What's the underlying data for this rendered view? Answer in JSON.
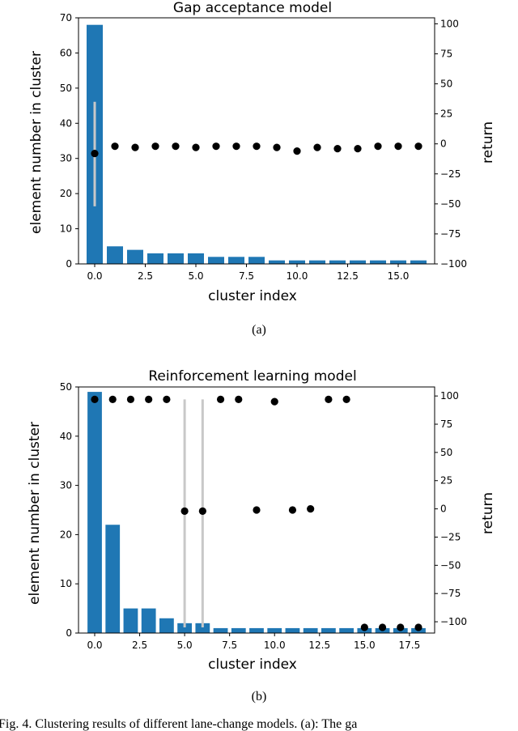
{
  "chart_data": [
    {
      "type": "bar",
      "title": "Gap acceptance model",
      "sub_caption": "(a)",
      "xlabel": "cluster index",
      "ylabel": "element number in cluster",
      "y2label": "return",
      "xlim": [
        -0.8,
        16.8
      ],
      "ylim": [
        0,
        70
      ],
      "y2lim": [
        -100,
        105
      ],
      "xticks": [
        "0.0",
        "2.5",
        "5.0",
        "7.5",
        "10.0",
        "12.5",
        "15.0"
      ],
      "yticks": [
        "0",
        "10",
        "20",
        "30",
        "40",
        "50",
        "60",
        "70"
      ],
      "y2ticks": [
        "100",
        "75",
        "50",
        "25",
        "0",
        "−25",
        "−50",
        "−75",
        "−100"
      ],
      "bar_color": "#1f77b4",
      "bars": {
        "x": [
          0,
          1,
          2,
          3,
          4,
          5,
          6,
          7,
          8,
          9,
          10,
          11,
          12,
          13,
          14,
          15,
          16
        ],
        "values": [
          68,
          5,
          4,
          3,
          3,
          3,
          2,
          2,
          2,
          1,
          1,
          1,
          1,
          1,
          1,
          1,
          1
        ]
      },
      "returns": {
        "x": [
          0,
          1,
          2,
          3,
          4,
          5,
          6,
          7,
          8,
          9,
          10,
          11,
          12,
          13,
          14,
          15,
          16
        ],
        "values": [
          -8,
          -2,
          -3,
          -2,
          -2,
          -3,
          -2,
          -2,
          -2,
          -3,
          -6,
          -3,
          -4,
          -4,
          -2,
          -2,
          -2
        ],
        "error_x": [
          0
        ],
        "error_low": [
          -52
        ],
        "error_high": [
          35
        ]
      }
    },
    {
      "type": "bar",
      "title": "Reinforcement learning model",
      "sub_caption": "(b)",
      "xlabel": "cluster index",
      "ylabel": "element number in cluster",
      "y2label": "return",
      "xlim": [
        -0.9,
        18.9
      ],
      "ylim": [
        0,
        50
      ],
      "y2lim": [
        -110,
        108
      ],
      "xticks": [
        "0.0",
        "2.5",
        "5.0",
        "7.5",
        "10.0",
        "12.5",
        "15.0",
        "17.5"
      ],
      "yticks": [
        "0",
        "10",
        "20",
        "30",
        "40",
        "50"
      ],
      "y2ticks": [
        "100",
        "75",
        "50",
        "25",
        "0",
        "−25",
        "−50",
        "−75",
        "−100"
      ],
      "bar_color": "#1f77b4",
      "bars": {
        "x": [
          0,
          1,
          2,
          3,
          4,
          5,
          6,
          7,
          8,
          9,
          10,
          11,
          12,
          13,
          14,
          15,
          16,
          17,
          18
        ],
        "values": [
          49,
          22,
          5,
          5,
          3,
          2,
          2,
          1,
          1,
          1,
          1,
          1,
          1,
          1,
          1,
          1,
          1,
          1,
          1
        ]
      },
      "returns": {
        "x": [
          0,
          1,
          2,
          3,
          4,
          5,
          6,
          7,
          8,
          9,
          10,
          11,
          12,
          13,
          14,
          15,
          16,
          17,
          18
        ],
        "values": [
          97,
          97,
          97,
          97,
          97,
          -2,
          -2,
          97,
          97,
          -1,
          95,
          -1,
          0,
          97,
          97,
          -105,
          -105,
          -105,
          -105
        ],
        "error_x": [
          5,
          6
        ],
        "error_low": [
          -105,
          -105
        ],
        "error_high": [
          97,
          97
        ]
      }
    }
  ],
  "figure_caption": "Fig. 4.   Clustering results of different lane-change models. (a): The ga"
}
